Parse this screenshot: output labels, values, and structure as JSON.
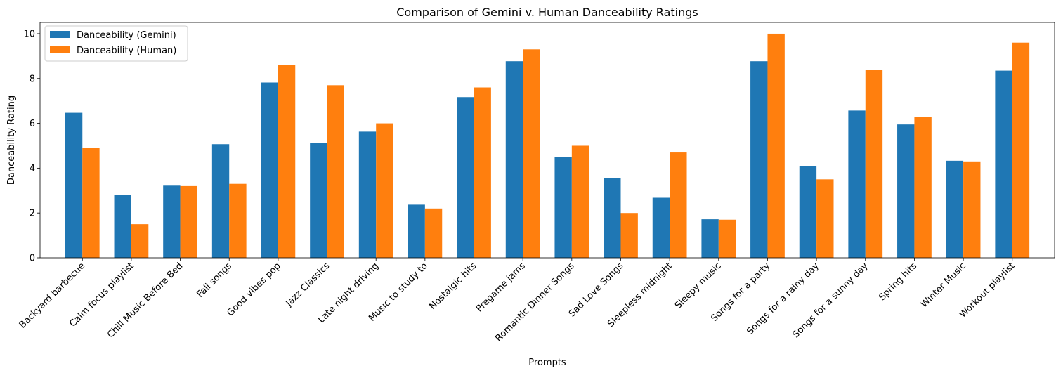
{
  "chart_data": {
    "type": "bar",
    "title": "Comparison of Gemini v. Human Danceability Ratings",
    "xlabel": "Prompts",
    "ylabel": "Danceability Rating",
    "ylim": [
      0,
      10.5
    ],
    "yticks": [
      0,
      2,
      4,
      6,
      8,
      10
    ],
    "grid": false,
    "legend_position": "top-left",
    "categories": [
      "Backyard barbecue",
      "Calm focus playlist",
      "Chill Music Before Bed",
      "Fall songs",
      "Good vibes pop",
      "Jazz Classics",
      "Late night driving",
      "Music to study to",
      "Nostalgic hits",
      "Pregame jams",
      "Romantic Dinner Songs",
      "Sad Love Songs",
      "Sleepless midnight",
      "Sleepy music",
      "Songs for a party",
      "Songs for a rainy day",
      "Songs for a sunny day",
      "Spring hits",
      "Winter Music",
      "Workout playlist"
    ],
    "series": [
      {
        "name": "Danceability (Gemini)",
        "color": "#1f77b4",
        "values": [
          6.47,
          2.82,
          3.22,
          5.07,
          7.82,
          5.13,
          5.63,
          2.37,
          7.17,
          8.77,
          4.5,
          3.57,
          2.68,
          1.72,
          8.77,
          4.1,
          6.57,
          5.95,
          4.33,
          8.35
        ]
      },
      {
        "name": "Danceability (Human)",
        "color": "#ff7f0e",
        "values": [
          4.9,
          1.5,
          3.2,
          3.3,
          8.6,
          7.7,
          6.0,
          2.2,
          7.6,
          9.3,
          5.0,
          2.0,
          4.7,
          1.7,
          10.0,
          3.5,
          8.4,
          6.3,
          4.3,
          9.6
        ]
      }
    ]
  }
}
